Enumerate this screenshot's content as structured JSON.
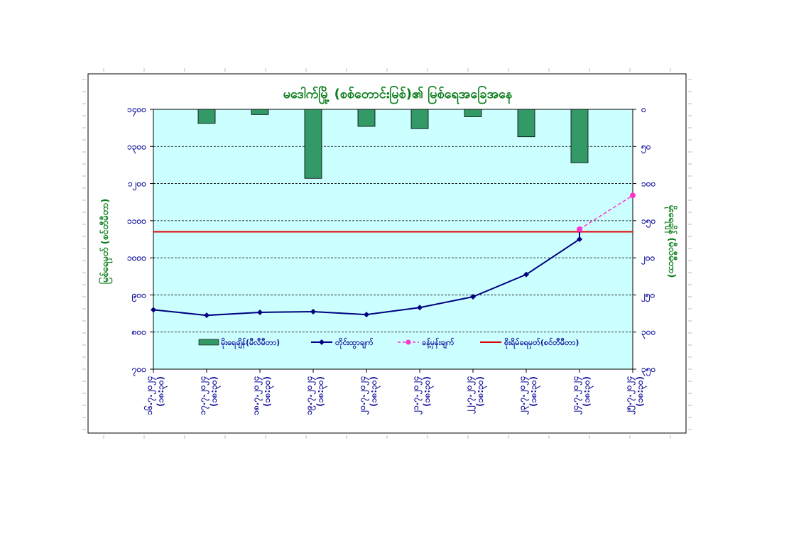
{
  "colors": {
    "plot_bg": "#ccffff",
    "bar_fill": "#339966",
    "line_main": "#000080",
    "line_forecast": "#ff33cc",
    "warning_line": "#e00000",
    "title_text": "#0a7d1a",
    "tick_text": "#1a1aa0"
  },
  "chart_data": {
    "type": "bar",
    "title": "မဒေါက်မြို့ (စစ်တောင်းမြစ်)၏ မြစ်ရေအခြေအနေ",
    "ylabel": "မြစ်ရေမှတ် (စင်တီမီတာ)",
    "y2label": "မိုးရေချိန် (မီလီမီတာ)",
    "categories": [
      "၁၆.၇.၂၀၂၄ (၁၈:၃၀)",
      "၁၇.၇.၂၀၂၄ (၁၈:၃၀)",
      "၁၈.၇.၂၀၂၄ (၁၈:၃၀)",
      "၁၉.၇.၂၀၂၄ (၁၈:၃၀)",
      "၂၀.၇.၂၀၂၄ (၁၈:၃၀)",
      "၂၁.၇.၂၀၂၄ (၁၈:၃၀)",
      "၂၂.၇.၂၀၂၄ (၁၈:၃၀)",
      "၂၃.၇.၂၀၂၄ (၁၈:၃၀)",
      "၂၄.၇.၂၀၂၄ (၁၈:၃၀)",
      "၂၅.၇.၂၀၂၄ (၁၈:၃၀)"
    ],
    "y_axis": {
      "min": 700,
      "max": 1400,
      "step": 100,
      "tick_labels": [
        "၁၄၀၀",
        "၁၃၀၀",
        "၁၂၀၀",
        "၁၁၀၀",
        "၁၀၀၀",
        "၉၀၀",
        "၈၀၀",
        "၇၀၀"
      ]
    },
    "y2_axis": {
      "min": 0,
      "max": 350,
      "step": 50,
      "reversed": true,
      "tick_labels": [
        "၀",
        "၅၀",
        "၁၀၀",
        "၁၅၀",
        "၂၀၀",
        "၂၅၀",
        "၃၀၀",
        "၃၅၀"
      ]
    },
    "grid": true,
    "legend_position": "bottom-inside",
    "series": [
      {
        "name": "မိုးရေချိန်(မီလီမီတာ)",
        "type": "bar",
        "axis": "y2",
        "values": [
          null,
          19,
          7,
          93,
          23,
          26,
          10,
          37,
          72,
          null
        ]
      },
      {
        "name": "တိုင်းထွာချက်",
        "type": "line",
        "axis": "y",
        "values": [
          860,
          845,
          853,
          855,
          847,
          866,
          895,
          955,
          1050,
          null
        ]
      },
      {
        "name": "ခန့်မှန်းချက်",
        "type": "line-dashed",
        "axis": "y",
        "values": [
          null,
          null,
          null,
          null,
          null,
          null,
          null,
          null,
          1077,
          1168
        ]
      },
      {
        "name": "စိုးရိမ်ရေမှတ်(စင်တီမီတာ)",
        "type": "hline",
        "axis": "y",
        "value": 1070
      }
    ]
  }
}
